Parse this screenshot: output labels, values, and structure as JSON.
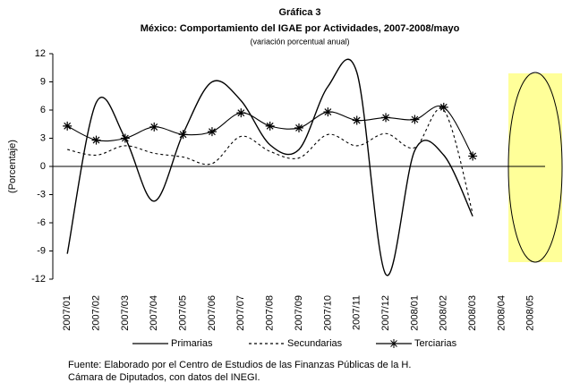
{
  "chart_data": {
    "type": "line",
    "title": "Gráfica 3",
    "subtitle": "México: Comportamiento del IGAE  por Actividades, 2007-2008/mayo",
    "note": "(variación porcentual anual)",
    "y_label": "(Porcentaje)",
    "categories": [
      "2007/01",
      "2007/02",
      "2007/03",
      "2007/04",
      "2007/05",
      "2007/06",
      "2007/07",
      "2007/08",
      "2007/09",
      "2007/10",
      "2007/11",
      "2007/12",
      "2008/01",
      "2008/02",
      "2008/03",
      "2008/04",
      "2008/05"
    ],
    "series": [
      {
        "name": "Primarias",
        "color": "#000000",
        "dash": "none",
        "marker": "none",
        "values": [
          -9.3,
          6.8,
          3.0,
          -3.7,
          3.5,
          9.0,
          7.0,
          2.3,
          1.8,
          8.5,
          10.0,
          -11.5,
          1.7,
          1.2,
          -5.3,
          null,
          null
        ]
      },
      {
        "name": "Secundarias",
        "color": "#000000",
        "dash": "3 3",
        "marker": "none",
        "values": [
          1.8,
          1.2,
          2.2,
          1.4,
          1.0,
          0.3,
          3.2,
          1.6,
          0.9,
          3.4,
          2.2,
          3.5,
          2.0,
          6.0,
          -5.0,
          null,
          null
        ]
      },
      {
        "name": "Terciarias",
        "color": "#000000",
        "dash": "none",
        "marker": "asterisk",
        "values": [
          4.3,
          2.8,
          3.0,
          4.2,
          3.4,
          3.7,
          5.7,
          4.3,
          4.1,
          5.8,
          4.9,
          5.2,
          5.0,
          6.3,
          1.1,
          null,
          null
        ]
      }
    ],
    "ylim": [
      -12,
      12
    ],
    "yticks": [
      -12,
      -9,
      -6,
      -3,
      0,
      3,
      6,
      9,
      12
    ],
    "source": [
      "Fuente: Elaborado por el Centro de Estudios de las Finanzas Públicas de la H.",
      "Cámara de Diputados, con datos del INEGI."
    ]
  }
}
